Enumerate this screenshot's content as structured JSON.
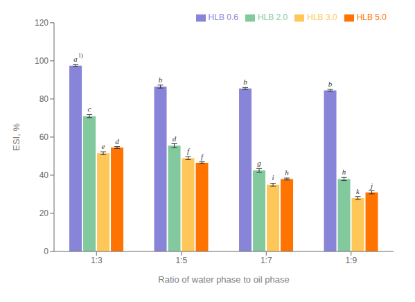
{
  "chart_data": {
    "type": "bar",
    "xlabel": "Ratio of water phase to oil phase",
    "ylabel": "ESI, %",
    "categories": [
      "1:3",
      "1:5",
      "1:7",
      "1:9"
    ],
    "series": [
      {
        "name": "HLB 0.6",
        "color": "#8884d8",
        "values": [
          97.5,
          86.5,
          85.5,
          84.5
        ],
        "errors": [
          0.5,
          0.8,
          0.5,
          0.5
        ],
        "labels": [
          "a",
          "b",
          "b",
          "b"
        ]
      },
      {
        "name": "HLB 2.0",
        "color": "#82ca9d",
        "values": [
          71.0,
          55.5,
          42.5,
          38.0
        ],
        "errors": [
          0.8,
          1.0,
          1.0,
          0.8
        ],
        "labels": [
          "c",
          "d",
          "g",
          "h"
        ]
      },
      {
        "name": "HLB 3.0",
        "color": "#ffc658",
        "values": [
          51.5,
          49.0,
          35.0,
          28.0
        ],
        "errors": [
          0.8,
          0.8,
          0.8,
          0.8
        ],
        "labels": [
          "e",
          "f",
          "i",
          "k"
        ]
      },
      {
        "name": "HLB 5.0",
        "color": "#ff7300",
        "values": [
          54.5,
          46.5,
          38.0,
          31.0
        ],
        "errors": [
          0.5,
          0.5,
          0.5,
          0.8
        ],
        "labels": [
          "d",
          "f",
          "h",
          "j"
        ]
      }
    ],
    "annotations": [
      {
        "text": "1)",
        "series": "HLB 0.6",
        "category": "1:3"
      }
    ],
    "ylim": [
      0,
      120
    ],
    "yticks": [
      0,
      20,
      40,
      60,
      80,
      100,
      120
    ],
    "grid": false,
    "legend": "upper right"
  }
}
